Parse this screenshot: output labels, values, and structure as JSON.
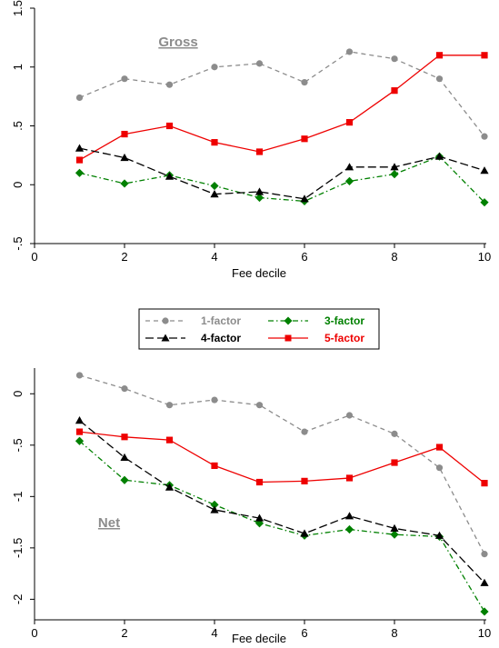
{
  "chart_data": [
    {
      "type": "line",
      "title": "",
      "panel_label": "Gross",
      "xlabel": "Fee decile",
      "ylabel": "",
      "xlim": [
        0,
        10
      ],
      "ylim": [
        -0.5,
        1.5
      ],
      "xticks": [
        "0",
        "2",
        "4",
        "6",
        "8",
        "10"
      ],
      "yticks": [
        "-.5",
        "0",
        ".5",
        "1",
        "1.5"
      ],
      "grid": false,
      "x": [
        1,
        2,
        3,
        4,
        5,
        6,
        7,
        8,
        9,
        10
      ],
      "series": [
        {
          "name": "1-factor",
          "values": [
            0.74,
            0.9,
            0.85,
            1.0,
            1.03,
            0.87,
            1.13,
            1.07,
            0.9,
            0.41
          ],
          "color": "#8c8c8c"
        },
        {
          "name": "3-factor",
          "values": [
            0.1,
            0.01,
            0.08,
            -0.01,
            -0.11,
            -0.14,
            0.03,
            0.09,
            0.24,
            -0.15
          ],
          "color": "#008000"
        },
        {
          "name": "4-factor",
          "values": [
            0.31,
            0.23,
            0.07,
            -0.08,
            -0.06,
            -0.12,
            0.15,
            0.15,
            0.24,
            0.12
          ],
          "color": "#000000"
        },
        {
          "name": "5-factor",
          "values": [
            0.21,
            0.43,
            0.5,
            0.36,
            0.28,
            0.39,
            0.53,
            0.8,
            1.1,
            1.1
          ],
          "color": "#ee0000"
        }
      ]
    },
    {
      "type": "line",
      "title": "",
      "panel_label": "Net",
      "xlabel": "Fee decile",
      "ylabel": "",
      "xlim": [
        0,
        10
      ],
      "ylim": [
        -2.2,
        0.25
      ],
      "xticks": [
        "0",
        "2",
        "4",
        "6",
        "8",
        "10"
      ],
      "yticks": [
        "-2",
        "-1.5",
        "-1",
        "-.5",
        "0"
      ],
      "grid": false,
      "x": [
        1,
        2,
        3,
        4,
        5,
        6,
        7,
        8,
        9,
        10
      ],
      "series": [
        {
          "name": "1-factor",
          "values": [
            0.18,
            0.05,
            -0.11,
            -0.06,
            -0.11,
            -0.37,
            -0.21,
            -0.39,
            -0.72,
            -1.56
          ],
          "color": "#8c8c8c"
        },
        {
          "name": "3-factor",
          "values": [
            -0.46,
            -0.84,
            -0.89,
            -1.08,
            -1.26,
            -1.38,
            -1.32,
            -1.37,
            -1.39,
            -2.12
          ],
          "color": "#008000"
        },
        {
          "name": "4-factor",
          "values": [
            -0.26,
            -0.62,
            -0.91,
            -1.13,
            -1.21,
            -1.36,
            -1.19,
            -1.31,
            -1.38,
            -1.84
          ],
          "color": "#000000"
        },
        {
          "name": "5-factor",
          "values": [
            -0.37,
            -0.42,
            -0.45,
            -0.7,
            -0.86,
            -0.85,
            -0.82,
            -0.67,
            -0.52,
            -0.87
          ],
          "color": "#ee0000"
        }
      ]
    }
  ],
  "legend": {
    "placement": "between panels",
    "items": [
      {
        "name": "1-factor",
        "color": "#8c8c8c",
        "label_color": "#8c8c8c",
        "marker": "circle"
      },
      {
        "name": "3-factor",
        "color": "#008000",
        "label_color": "#008000",
        "marker": "diamond"
      },
      {
        "name": "4-factor",
        "color": "#000000",
        "label_color": "#000000",
        "marker": "triangle"
      },
      {
        "name": "5-factor",
        "color": "#ee0000",
        "label_color": "#ee0000",
        "marker": "square"
      }
    ]
  },
  "colors": {
    "axis": "#000000",
    "panel_label": "#8c8c8c"
  }
}
